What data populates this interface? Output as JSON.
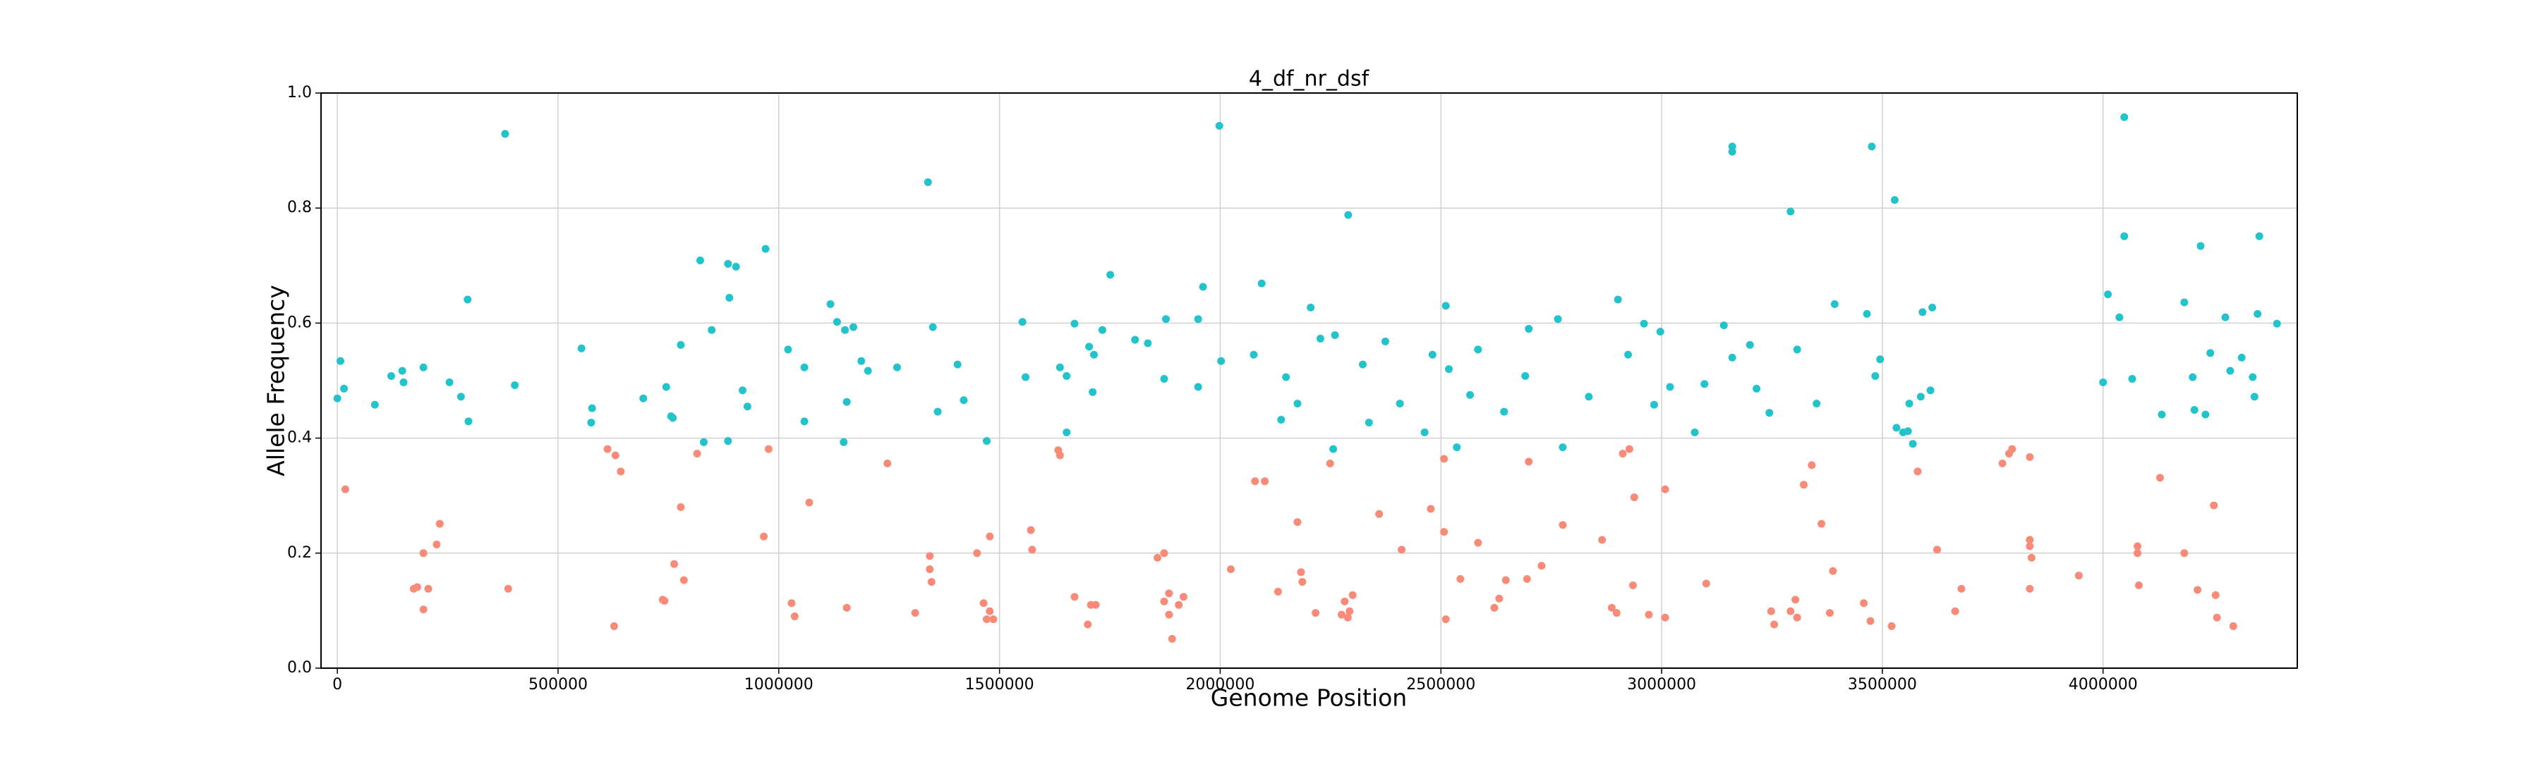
{
  "chart_data": {
    "type": "scatter",
    "title": "4_df_nr_dsf",
    "x_label": "Genome Position",
    "y_label": "Allele Frequency",
    "xlim": [
      -37000,
      4440000
    ],
    "ylim": [
      0,
      1
    ],
    "xticks": [
      0,
      500000,
      1000000,
      1500000,
      2000000,
      2500000,
      3000000,
      3500000,
      4000000
    ],
    "yticks": [
      {
        "value": 0,
        "label": "0.0"
      },
      0.2,
      0.4,
      0.6,
      0.8,
      {
        "value": 1,
        "label": "1.0"
      }
    ],
    "grid": true,
    "series": [
      {
        "color": "#22c3cb",
        "x": [
          0,
          7000,
          15000,
          85000,
          122000,
          147000,
          150000,
          195000,
          254000,
          280000,
          295000,
          297000,
          380000,
          402000,
          553000,
          575000,
          577000,
          693000,
          745000,
          756000,
          760000,
          778000,
          822000,
          830000,
          848000,
          885000,
          885000,
          888000,
          903000,
          918000,
          929000,
          970000,
          1021000,
          1058000,
          1058000,
          1117000,
          1132000,
          1147000,
          1150000,
          1154000,
          1169000,
          1187000,
          1202000,
          1268000,
          1338000,
          1349000,
          1360000,
          1405000,
          1419000,
          1471000,
          1552000,
          1559000,
          1637000,
          1652000,
          1652000,
          1670000,
          1703000,
          1711000,
          1714000,
          1733000,
          1751000,
          1807000,
          1836000,
          1873000,
          1877000,
          1950000,
          1950000,
          1961000,
          1998000,
          2002000,
          2076000,
          2094000,
          2138000,
          2149000,
          2175000,
          2205000,
          2227000,
          2260000,
          2256000,
          2290000,
          2323000,
          2337000,
          2374000,
          2407000,
          2463000,
          2481000,
          2511000,
          2518000,
          2536000,
          2566000,
          2584000,
          2643000,
          2691000,
          2699000,
          2765000,
          2776000,
          2835000,
          2901000,
          2924000,
          2960000,
          2983000,
          2997000,
          3019000,
          3075000,
          3097000,
          3141000,
          3160000,
          3160000,
          3160000,
          3200000,
          3215000,
          3244000,
          3292000,
          3307000,
          3351000,
          3392000,
          3465000,
          3476000,
          3484000,
          3495000,
          3528000,
          3532000,
          3547000,
          3558000,
          3569000,
          3561000,
          3587000,
          3591000,
          3609000,
          3613000,
          4000000,
          4011000,
          4037000,
          4048000,
          4048000,
          4066000,
          4133000,
          4184000,
          4203000,
          4207000,
          4221000,
          4232000,
          4243000,
          4277000,
          4288000,
          4314000,
          4339000,
          4343000,
          4354000,
          4350000,
          4394000
        ],
        "values": [
          0.469,
          0.534,
          0.486,
          0.458,
          0.508,
          0.517,
          0.497,
          0.523,
          0.497,
          0.472,
          0.641,
          0.429,
          0.929,
          0.492,
          0.556,
          0.427,
          0.452,
          0.469,
          0.489,
          0.438,
          0.435,
          0.562,
          0.709,
          0.393,
          0.588,
          0.703,
          0.395,
          0.644,
          0.698,
          0.483,
          0.455,
          0.729,
          0.554,
          0.429,
          0.523,
          0.633,
          0.602,
          0.393,
          0.588,
          0.463,
          0.593,
          0.534,
          0.517,
          0.523,
          0.845,
          0.593,
          0.446,
          0.528,
          0.466,
          0.395,
          0.602,
          0.506,
          0.523,
          0.508,
          0.41,
          0.599,
          0.559,
          0.48,
          0.545,
          0.588,
          0.684,
          0.571,
          0.565,
          0.503,
          0.607,
          0.607,
          0.489,
          0.663,
          0.943,
          0.534,
          0.545,
          0.669,
          0.432,
          0.506,
          0.46,
          0.627,
          0.573,
          0.579,
          0.381,
          0.788,
          0.528,
          0.427,
          0.568,
          0.46,
          0.41,
          0.545,
          0.63,
          0.52,
          0.384,
          0.475,
          0.554,
          0.446,
          0.508,
          0.59,
          0.607,
          0.384,
          0.472,
          0.641,
          0.545,
          0.599,
          0.458,
          0.585,
          0.489,
          0.41,
          0.494,
          0.596,
          0.907,
          0.898,
          0.54,
          0.562,
          0.486,
          0.444,
          0.794,
          0.554,
          0.46,
          0.633,
          0.616,
          0.907,
          0.508,
          0.537,
          0.814,
          0.418,
          0.41,
          0.412,
          0.39,
          0.46,
          0.472,
          0.619,
          0.483,
          0.627,
          0.497,
          0.65,
          0.61,
          0.751,
          0.958,
          0.503,
          0.441,
          0.636,
          0.506,
          0.449,
          0.734,
          0.441,
          0.548,
          0.61,
          0.517,
          0.54,
          0.506,
          0.472,
          0.751,
          0.616,
          0.599
        ]
      },
      {
        "color": "#f88a78",
        "x": [
          18000,
          173000,
          181000,
          195000,
          195000,
          206000,
          225000,
          232000,
          387000,
          612000,
          630000,
          642000,
          627000,
          737000,
          741000,
          763000,
          778000,
          785000,
          815000,
          966000,
          977000,
          1029000,
          1036000,
          1069000,
          1154000,
          1246000,
          1309000,
          1342000,
          1342000,
          1346000,
          1449000,
          1464000,
          1471000,
          1478000,
          1486000,
          1478000,
          1571000,
          1574000,
          1633000,
          1637000,
          1670000,
          1700000,
          1707000,
          1718000,
          1858000,
          1873000,
          1873000,
          1884000,
          1891000,
          1884000,
          1906000,
          1917000,
          2024000,
          2079000,
          2101000,
          2131000,
          2175000,
          2183000,
          2186000,
          2216000,
          2249000,
          2275000,
          2282000,
          2289000,
          2293000,
          2300000,
          2360000,
          2411000,
          2477000,
          2507000,
          2511000,
          2507000,
          2544000,
          2584000,
          2621000,
          2632000,
          2647000,
          2695000,
          2699000,
          2728000,
          2776000,
          2865000,
          2887000,
          2898000,
          2912000,
          2927000,
          2938000,
          2935000,
          2971000,
          3008000,
          3008000,
          3101000,
          3248000,
          3255000,
          3292000,
          3303000,
          3307000,
          3322000,
          3340000,
          3362000,
          3388000,
          3381000,
          3458000,
          3473000,
          3521000,
          3580000,
          3624000,
          3665000,
          3679000,
          3772000,
          3787000,
          3794000,
          3834000,
          3834000,
          3834000,
          3838000,
          3834000,
          3945000,
          4081000,
          4078000,
          4078000,
          4129000,
          4184000,
          4214000,
          4251000,
          4255000,
          4258000,
          4295000
        ],
        "values": [
          0.311,
          0.138,
          0.141,
          0.2,
          0.102,
          0.138,
          0.215,
          0.251,
          0.138,
          0.381,
          0.37,
          0.342,
          0.073,
          0.119,
          0.117,
          0.181,
          0.28,
          0.153,
          0.373,
          0.229,
          0.381,
          0.113,
          0.09,
          0.288,
          0.105,
          0.356,
          0.096,
          0.195,
          0.172,
          0.15,
          0.2,
          0.113,
          0.085,
          0.099,
          0.085,
          0.229,
          0.24,
          0.206,
          0.379,
          0.37,
          0.124,
          0.076,
          0.11,
          0.11,
          0.192,
          0.2,
          0.116,
          0.093,
          0.051,
          0.13,
          0.11,
          0.124,
          0.172,
          0.325,
          0.325,
          0.133,
          0.254,
          0.167,
          0.15,
          0.096,
          0.356,
          0.093,
          0.116,
          0.088,
          0.099,
          0.127,
          0.268,
          0.206,
          0.277,
          0.237,
          0.085,
          0.364,
          0.155,
          0.218,
          0.105,
          0.121,
          0.153,
          0.155,
          0.359,
          0.178,
          0.249,
          0.223,
          0.105,
          0.096,
          0.373,
          0.381,
          0.297,
          0.144,
          0.093,
          0.088,
          0.311,
          0.147,
          0.099,
          0.076,
          0.099,
          0.119,
          0.088,
          0.319,
          0.353,
          0.251,
          0.169,
          0.096,
          0.113,
          0.082,
          0.073,
          0.342,
          0.206,
          0.099,
          0.138,
          0.356,
          0.373,
          0.381,
          0.367,
          0.223,
          0.212,
          0.192,
          0.138,
          0.161,
          0.144,
          0.212,
          0.2,
          0.331,
          0.2,
          0.136,
          0.283,
          0.127,
          0.088,
          0.073
        ]
      }
    ]
  }
}
